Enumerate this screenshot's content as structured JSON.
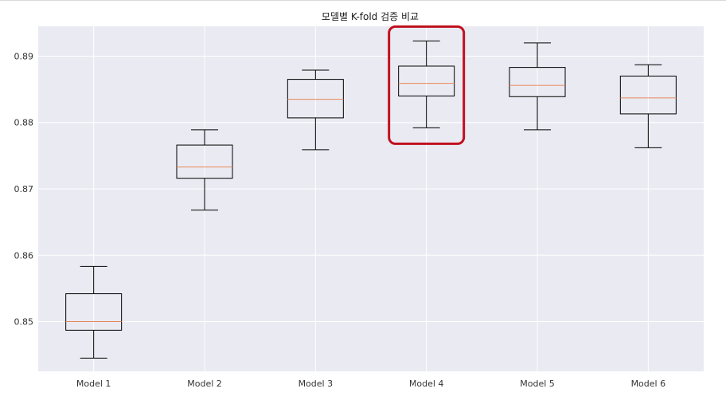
{
  "chart_data": {
    "type": "box",
    "title": "모델별 K-fold 검증 비교",
    "xlabel": "",
    "ylabel": "",
    "ylim": [
      0.8425,
      0.8945
    ],
    "yticks": [
      0.85,
      0.86,
      0.87,
      0.88,
      0.89
    ],
    "ytick_labels": [
      "0.85",
      "0.86",
      "0.87",
      "0.88",
      "0.89"
    ],
    "grid": true,
    "categories": [
      "Model 1",
      "Model 2",
      "Model 3",
      "Model 4",
      "Model 5",
      "Model 6"
    ],
    "boxes": [
      {
        "label": "Model 1",
        "whislo": 0.8445,
        "q1": 0.8487,
        "med": 0.85,
        "q3": 0.8542,
        "whishi": 0.8583
      },
      {
        "label": "Model 2",
        "whislo": 0.8668,
        "q1": 0.8716,
        "med": 0.8733,
        "q3": 0.8766,
        "whishi": 0.8789
      },
      {
        "label": "Model 3",
        "whislo": 0.8759,
        "q1": 0.8807,
        "med": 0.8835,
        "q3": 0.8865,
        "whishi": 0.8879
      },
      {
        "label": "Model 4",
        "whislo": 0.8792,
        "q1": 0.884,
        "med": 0.8859,
        "q3": 0.8885,
        "whishi": 0.8923
      },
      {
        "label": "Model 5",
        "whislo": 0.8789,
        "q1": 0.8839,
        "med": 0.8856,
        "q3": 0.8883,
        "whishi": 0.892
      },
      {
        "label": "Model 6",
        "whislo": 0.8762,
        "q1": 0.8813,
        "med": 0.8837,
        "q3": 0.887,
        "whishi": 0.8887
      }
    ],
    "highlighted": "Model 4",
    "colors": {
      "background": "#eaeaf2",
      "grid": "#ffffff",
      "box": "#000000",
      "median": "#e8885a",
      "highlight": "#c0101f"
    }
  }
}
